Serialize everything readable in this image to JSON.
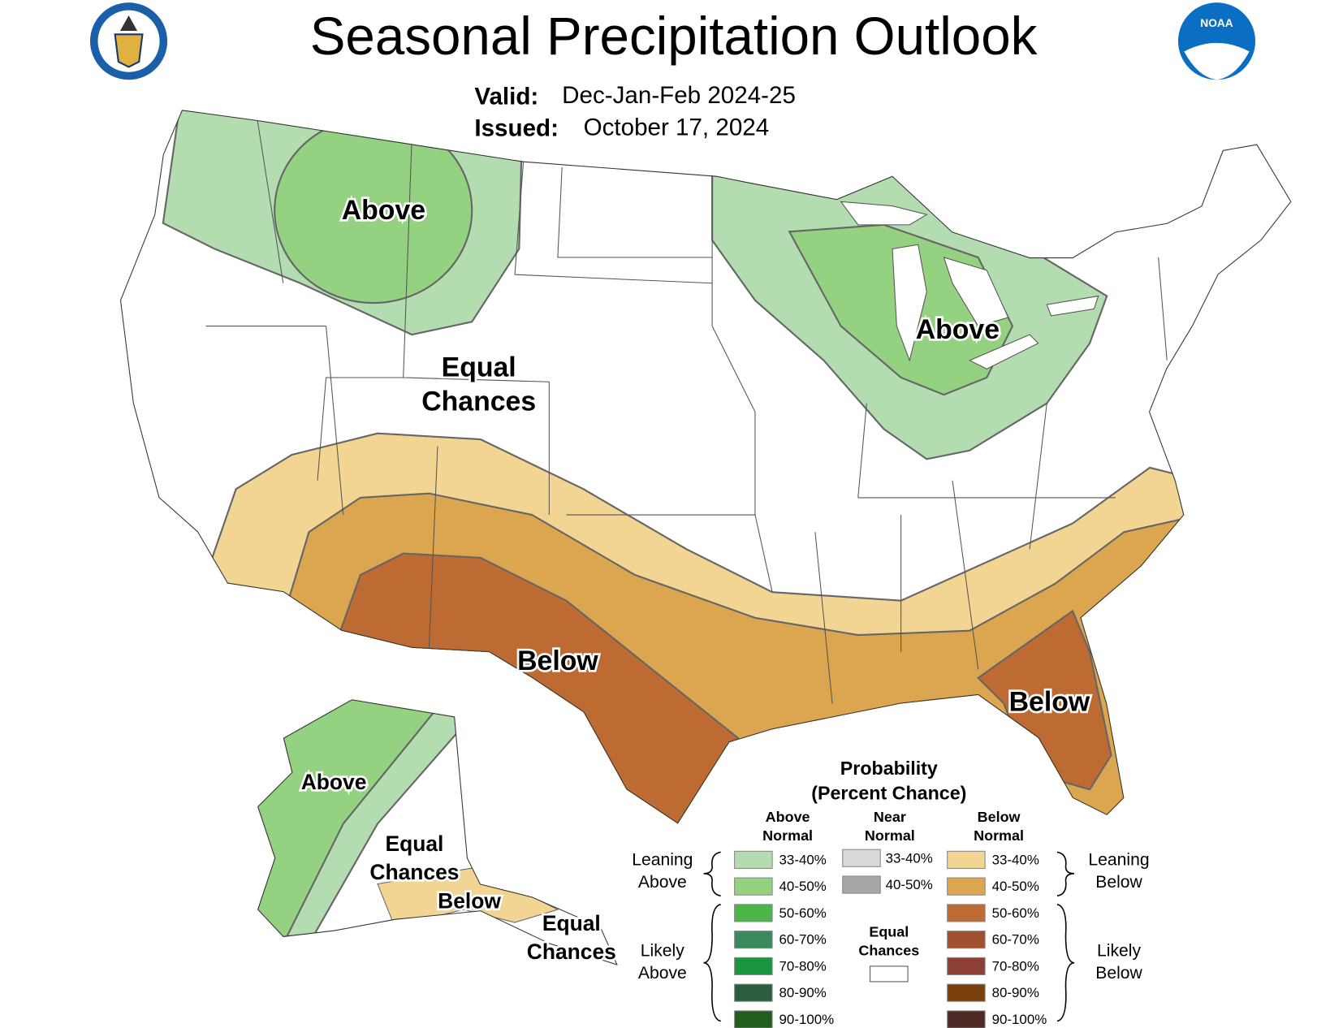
{
  "header": {
    "title": "Seasonal Precipitation Outlook",
    "valid_label": "Valid:",
    "valid": "Dec-Jan-Feb 2024-25",
    "issued_label": "Issued:",
    "issued": "October 17, 2024",
    "noaa_logo": "NOAA"
  },
  "map_labels": [
    [
      "Above"
    ],
    [
      "Above"
    ],
    [
      "Equal",
      "Chances"
    ],
    [
      "Below"
    ],
    [
      "Below"
    ],
    [
      "Above"
    ],
    [
      "Equal",
      "Chances"
    ],
    [
      "Below"
    ],
    [
      "Equal",
      "Chances"
    ]
  ],
  "legend": {
    "title": [
      "Probability",
      "(Percent Chance)"
    ],
    "columns": [
      {
        "heading": [
          "Above",
          "Normal"
        ],
        "items": [
          {
            "label": "33-40%",
            "color": "#b3dcb0"
          },
          {
            "label": "40-50%",
            "color": "#94d180"
          },
          {
            "label": "50-60%",
            "color": "#4bb548"
          },
          {
            "label": "60-70%",
            "color": "#3a8a5e"
          },
          {
            "label": "70-80%",
            "color": "#199540"
          },
          {
            "label": "80-90%",
            "color": "#2a5e3e"
          },
          {
            "label": "90-100%",
            "color": "#215d1c"
          }
        ]
      },
      {
        "heading": [
          "Near",
          "Normal"
        ],
        "items": [
          {
            "label": "33-40%",
            "color": "#d9d9d9"
          },
          {
            "label": "40-50%",
            "color": "#a6a6a6"
          }
        ]
      },
      {
        "heading": [
          "Below",
          "Normal"
        ],
        "items": [
          {
            "label": "33-40%",
            "color": "#f2d593"
          },
          {
            "label": "40-50%",
            "color": "#dba64f"
          },
          {
            "label": "50-60%",
            "color": "#bd6b33"
          },
          {
            "label": "60-70%",
            "color": "#a0502e"
          },
          {
            "label": "70-80%",
            "color": "#8e3f35"
          },
          {
            "label": "80-90%",
            "color": "#7a3f0a"
          },
          {
            "label": "90-100%",
            "color": "#4d2a26"
          }
        ]
      }
    ],
    "equal_chances": {
      "label": [
        "Equal",
        "Chances"
      ],
      "color": "#ffffff"
    },
    "side_labels": [
      [
        "Leaning",
        "Above"
      ],
      [
        "Likely",
        "Above"
      ],
      [
        "Leaning",
        "Below"
      ],
      [
        "Likely",
        "Below"
      ]
    ]
  }
}
